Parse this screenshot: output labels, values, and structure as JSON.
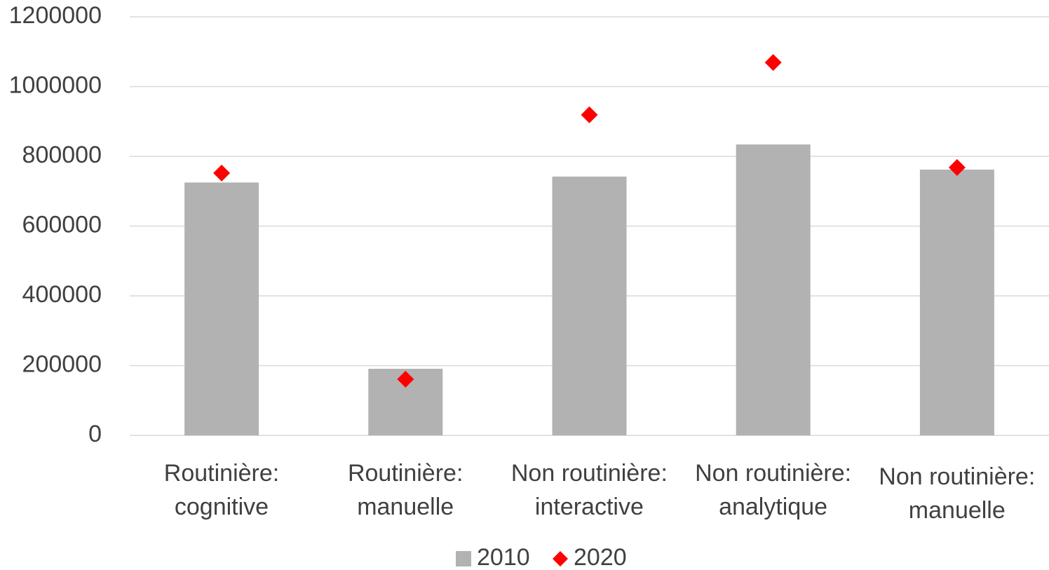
{
  "chart_data": {
    "type": "bar",
    "categories": [
      "Routinière:\ncognitive",
      "Routinière:\nmanuelle",
      "Non routinière:\ninteractive",
      "Non routinière:\nanalytique",
      "Non routinière:\nmanuelle"
    ],
    "series": [
      {
        "name": "2010",
        "type": "bar",
        "color": "#b2b2b2",
        "values": [
          725000,
          191000,
          742000,
          834000,
          762000
        ]
      },
      {
        "name": "2020",
        "type": "scatter",
        "color": "#ff0000",
        "values": [
          752000,
          161000,
          919000,
          1069000,
          768000
        ]
      }
    ],
    "ylim": [
      0,
      1200000
    ],
    "yticks": [
      0,
      200000,
      400000,
      600000,
      800000,
      1000000,
      1200000
    ],
    "grid": true,
    "legend": "bottom"
  }
}
